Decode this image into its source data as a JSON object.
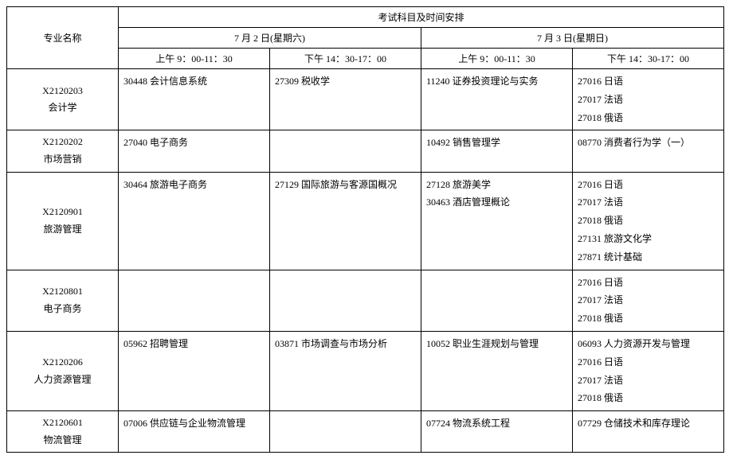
{
  "header": {
    "major_label": "专业名称",
    "schedule_label": "考试科目及时间安排",
    "day1": "7 月 2 日(星期六)",
    "day2": "7 月 3 日(星期日)",
    "slot_am": "上午 9：00-11：30",
    "slot_pm": "下午 14：30-17：00"
  },
  "rows": [
    {
      "code": "X2120203",
      "name": "会计学",
      "d1am": "30448  会计信息系统",
      "d1pm": "27309  税收学",
      "d2am": "11240  证券投资理论与实务",
      "d2pm": "27016  日语\n27017  法语\n27018  俄语"
    },
    {
      "code": "X2120202",
      "name": "市场营销",
      "d1am": "27040  电子商务",
      "d1pm": "",
      "d2am": "10492  销售管理学",
      "d2pm": "08770  消费者行为学（一）"
    },
    {
      "code": "X2120901",
      "name": "旅游管理",
      "d1am": "30464  旅游电子商务",
      "d1pm": "27129  国际旅游与客源国概况",
      "d2am": "27128  旅游美学\n30463  酒店管理概论",
      "d2pm": "27016  日语\n27017  法语\n27018  俄语\n27131  旅游文化学\n27871  统计基础"
    },
    {
      "code": "X2120801",
      "name": "电子商务",
      "d1am": "",
      "d1pm": "",
      "d2am": "",
      "d2pm": "27016  日语\n27017  法语\n27018  俄语"
    },
    {
      "code": "X2120206",
      "name": "人力资源管理",
      "d1am": "05962  招聘管理",
      "d1pm": "03871  市场调查与市场分析",
      "d2am": "10052  职业生涯规划与管理",
      "d2pm": "06093  人力资源开发与管理\n27016  日语\n27017  法语\n27018  俄语"
    },
    {
      "code": "X2120601",
      "name": "物流管理",
      "d1am": "07006  供应链与企业物流管理",
      "d1pm": "",
      "d2am": "07724  物流系统工程",
      "d2pm": "07729  仓储技术和库存理论"
    }
  ]
}
